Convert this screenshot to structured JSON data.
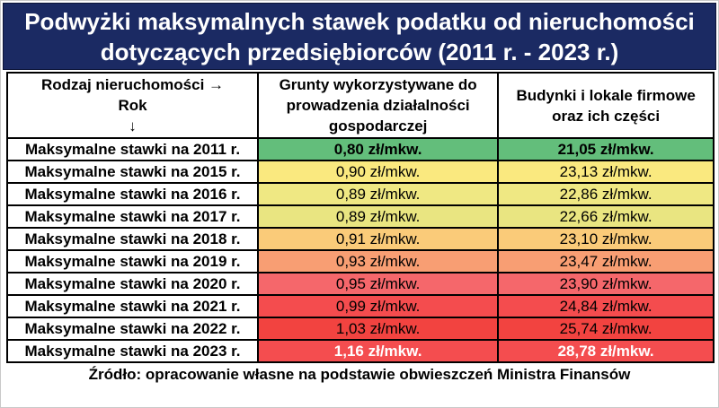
{
  "banner": {
    "title_line1": "Podwyżki maksymalnych stawek podatku od nieruchomości",
    "title_line2": "dotyczących przedsiębiorców (2011 r. - 2023 r.)",
    "bg_color": "#1B2A63",
    "text_color": "#FFFFFF"
  },
  "table": {
    "header": {
      "col1_line1": "Rodzaj nieruchomości →",
      "col1_line2": "Rok",
      "col1_line3": "↓",
      "col2": "Grunty wykorzystywane do prowadzenia działalności gospodarczej",
      "col3": "Budynki i lokale firmowe oraz ich części"
    },
    "rows": [
      {
        "label": "Maksymalne stawki na 2011 r.",
        "grunty": "0,80 zł/mkw.",
        "budynki": "21,05 zł/mkw.",
        "bg": "#63BE7B",
        "fg": "#000000",
        "bold": true
      },
      {
        "label": "Maksymalne stawki na 2015 r.",
        "grunty": "0,90 zł/mkw.",
        "budynki": "23,13 zł/mkw.",
        "bg": "#FAE97F",
        "fg": "#000000",
        "bold": false
      },
      {
        "label": "Maksymalne stawki na 2016 r.",
        "grunty": "0,89 zł/mkw.",
        "budynki": "22,86 zł/mkw.",
        "bg": "#EFE883",
        "fg": "#000000",
        "bold": false
      },
      {
        "label": "Maksymalne stawki na 2017 r.",
        "grunty": "0,89 zł/mkw.",
        "budynki": "22,66 zł/mkw.",
        "bg": "#E9E581",
        "fg": "#000000",
        "bold": false
      },
      {
        "label": "Maksymalne stawki na 2018 r.",
        "grunty": "0,91 zł/mkw.",
        "budynki": "23,10 zł/mkw.",
        "bg": "#FACB79",
        "fg": "#000000",
        "bold": false
      },
      {
        "label": "Maksymalne stawki na 2019 r.",
        "grunty": "0,93 zł/mkw.",
        "budynki": "23,47 zł/mkw.",
        "bg": "#F89E73",
        "fg": "#000000",
        "bold": false
      },
      {
        "label": "Maksymalne stawki na 2020 r.",
        "grunty": "0,95 zł/mkw.",
        "budynki": "23,90 zł/mkw.",
        "bg": "#F5676B",
        "fg": "#000000",
        "bold": false
      },
      {
        "label": "Maksymalne stawki na 2021 r.",
        "grunty": "0,99 zł/mkw.",
        "budynki": "24,84 zł/mkw.",
        "bg": "#F44C4E",
        "fg": "#000000",
        "bold": false
      },
      {
        "label": "Maksymalne stawki na 2022 r.",
        "grunty": "1,03 zł/mkw.",
        "budynki": "25,74 zł/mkw.",
        "bg": "#F24340",
        "fg": "#000000",
        "bold": false
      },
      {
        "label": "Maksymalne stawki na 2023 r.",
        "grunty": "1,16 zł/mkw.",
        "budynki": "28,78 zł/mkw.",
        "bg": "#F44D4F",
        "fg": "#FFFFFF",
        "bold": true
      }
    ]
  },
  "footer": {
    "source": "Źródło: opracowanie własne na podstawie obwieszczeń Ministra Finansów"
  },
  "chart_data": {
    "type": "table",
    "title": "Podwyżki maksymalnych stawek podatku od nieruchomości dotyczących przedsiębiorców (2011 r. - 2023 r.)",
    "columns": [
      "Rodzaj nieruchomości / Rok",
      "Grunty wykorzystywane do prowadzenia działalności gospodarczej",
      "Budynki i lokale firmowe oraz ich części"
    ],
    "years": [
      2011,
      2015,
      2016,
      2017,
      2018,
      2019,
      2020,
      2021,
      2022,
      2023
    ],
    "series": [
      {
        "name": "Grunty wykorzystywane do prowadzenia działalności gospodarczej (zł/mkw.)",
        "values": [
          0.8,
          0.9,
          0.89,
          0.89,
          0.91,
          0.93,
          0.95,
          0.99,
          1.03,
          1.16
        ]
      },
      {
        "name": "Budynki i lokale firmowe oraz ich części (zł/mkw.)",
        "values": [
          21.05,
          23.13,
          22.86,
          22.66,
          23.1,
          23.47,
          23.9,
          24.84,
          25.74,
          28.78
        ]
      }
    ],
    "heatmap_scale": "green (lowest) to red (highest)",
    "source": "Źródło: opracowanie własne na podstawie obwieszczeń Ministra Finansów"
  }
}
